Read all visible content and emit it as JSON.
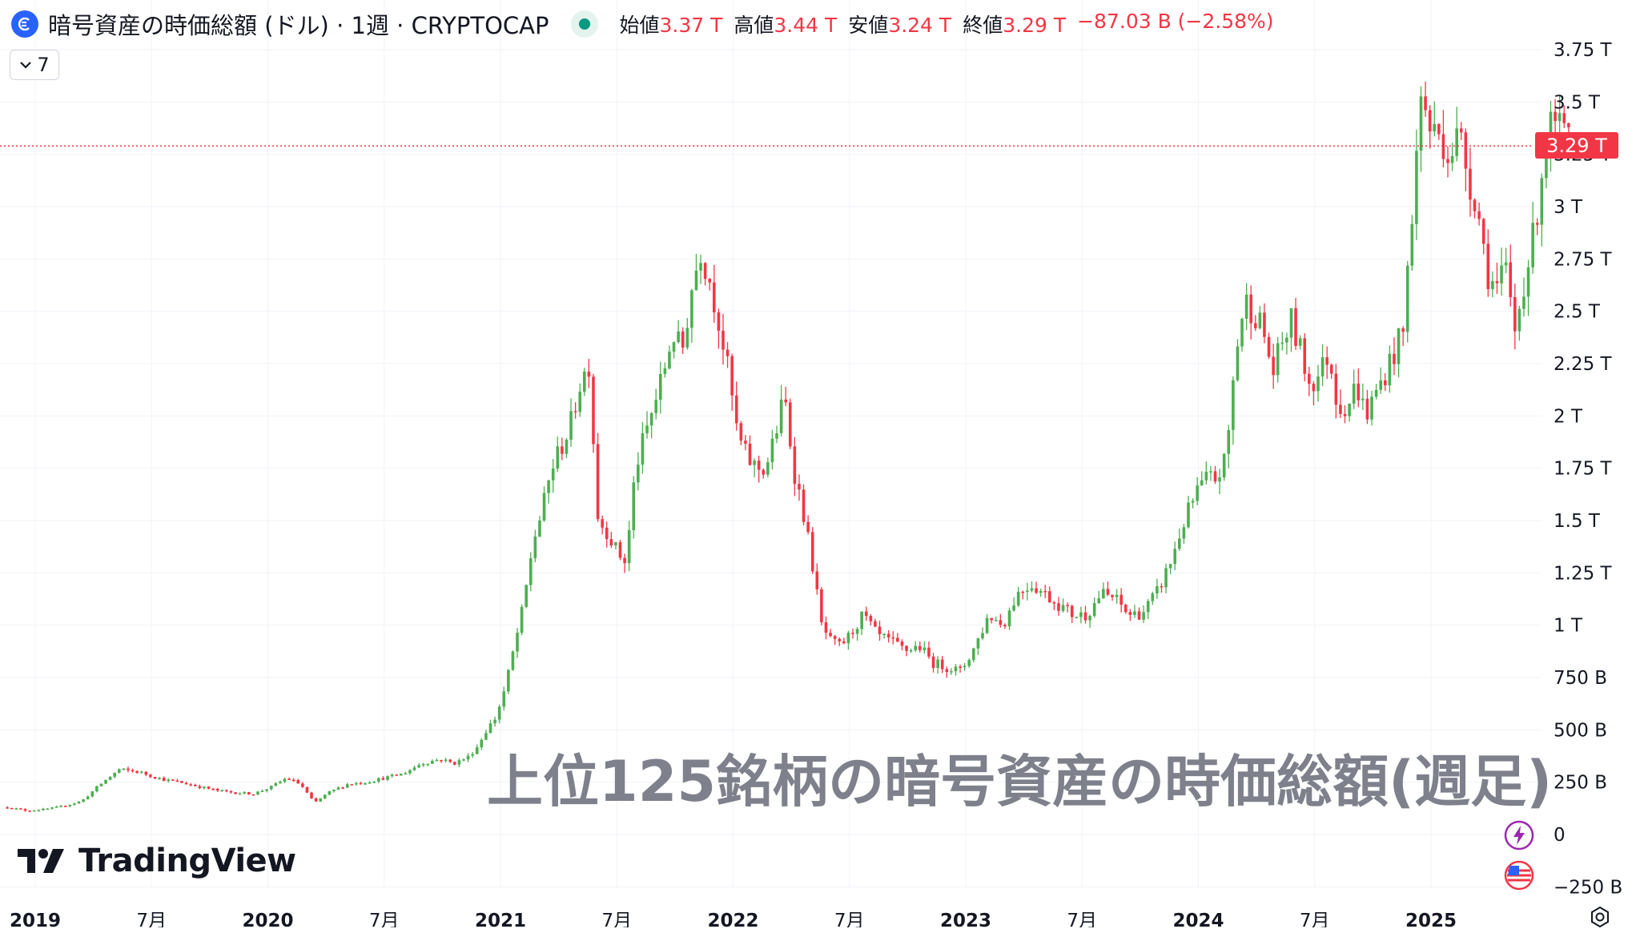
{
  "header": {
    "title": "暗号資産の時価総額 (ドル) · 1週 · CRYPTOCAP",
    "ohlc": [
      {
        "label": "始値",
        "value": "3.37 T"
      },
      {
        "label": "高値",
        "value": "3.44 T"
      },
      {
        "label": "安値",
        "value": "3.24 T"
      },
      {
        "label": "終値",
        "value": "3.29 T"
      }
    ],
    "change": "−87.03 B (−2.58%)",
    "collapse_label": "7"
  },
  "price_tag": "3.29 T",
  "logo_text": "TradingView",
  "watermark": "上位125銘柄の暗号資産の時価総額(週足)",
  "colors": {
    "up": "#4caf50",
    "down": "#f23645",
    "grid": "#f0f3fa",
    "axis_text": "#131722"
  },
  "chart_data": {
    "type": "candlestick",
    "title": "暗号資産の時価総額 (ドル) · 1週 · CRYPTOCAP",
    "y_axis": {
      "unit": "USD",
      "range": [
        -250000000000,
        3750000000000
      ],
      "ticks": [
        {
          "value": 3750000000000,
          "label": "3.75 T"
        },
        {
          "value": 3500000000000,
          "label": "3.5 T"
        },
        {
          "value": 3250000000000,
          "label": "3.25 T"
        },
        {
          "value": 3000000000000,
          "label": "3 T"
        },
        {
          "value": 2750000000000,
          "label": "2.75 T"
        },
        {
          "value": 2500000000000,
          "label": "2.5 T"
        },
        {
          "value": 2250000000000,
          "label": "2.25 T"
        },
        {
          "value": 2000000000000,
          "label": "2 T"
        },
        {
          "value": 1750000000000,
          "label": "1.75 T"
        },
        {
          "value": 1500000000000,
          "label": "1.5 T"
        },
        {
          "value": 1250000000000,
          "label": "1.25 T"
        },
        {
          "value": 1000000000000,
          "label": "1 T"
        },
        {
          "value": 750000000000,
          "label": "750 B"
        },
        {
          "value": 500000000000,
          "label": "500 B"
        },
        {
          "value": 250000000000,
          "label": "250 B"
        },
        {
          "value": 0,
          "label": "0"
        },
        {
          "value": -250000000000,
          "label": "−250 B"
        }
      ]
    },
    "x_axis": {
      "unit": "year",
      "ticks": [
        {
          "value": 2019.0,
          "label": "2019",
          "bold": true
        },
        {
          "value": 2019.5,
          "label": "7月",
          "bold": false
        },
        {
          "value": 2020.0,
          "label": "2020",
          "bold": true
        },
        {
          "value": 2020.5,
          "label": "7月",
          "bold": false
        },
        {
          "value": 2021.0,
          "label": "2021",
          "bold": true
        },
        {
          "value": 2021.5,
          "label": "7月",
          "bold": false
        },
        {
          "value": 2022.0,
          "label": "2022",
          "bold": true
        },
        {
          "value": 2022.5,
          "label": "7月",
          "bold": false
        },
        {
          "value": 2023.0,
          "label": "2023",
          "bold": true
        },
        {
          "value": 2023.5,
          "label": "7月",
          "bold": false
        },
        {
          "value": 2024.0,
          "label": "2024",
          "bold": true
        },
        {
          "value": 2024.5,
          "label": "7月",
          "bold": false
        },
        {
          "value": 2025.0,
          "label": "2025",
          "bold": true
        }
      ]
    },
    "last_price": 3290000000000,
    "series_close_billions": {
      "x": [
        2018.88,
        2018.96,
        2019.04,
        2019.12,
        2019.2,
        2019.28,
        2019.36,
        2019.44,
        2019.5,
        2019.56,
        2019.62,
        2019.7,
        2019.78,
        2019.86,
        2019.94,
        2020.02,
        2020.08,
        2020.14,
        2020.2,
        2020.26,
        2020.34,
        2020.42,
        2020.5,
        2020.58,
        2020.66,
        2020.74,
        2020.8,
        2020.86,
        2020.9,
        2020.94,
        2020.98,
        2021.02,
        2021.06,
        2021.1,
        2021.14,
        2021.18,
        2021.22,
        2021.26,
        2021.3,
        2021.34,
        2021.38,
        2021.42,
        2021.46,
        2021.5,
        2021.54,
        2021.58,
        2021.62,
        2021.66,
        2021.7,
        2021.74,
        2021.78,
        2021.82,
        2021.86,
        2021.9,
        2021.94,
        2021.98,
        2022.02,
        2022.06,
        2022.1,
        2022.14,
        2022.18,
        2022.22,
        2022.26,
        2022.3,
        2022.34,
        2022.38,
        2022.42,
        2022.46,
        2022.5,
        2022.56,
        2022.62,
        2022.68,
        2022.74,
        2022.8,
        2022.86,
        2022.92,
        2022.98,
        2023.04,
        2023.1,
        2023.16,
        2023.22,
        2023.28,
        2023.34,
        2023.4,
        2023.46,
        2023.52,
        2023.58,
        2023.64,
        2023.7,
        2023.76,
        2023.82,
        2023.88,
        2023.94,
        2024.0,
        2024.04,
        2024.08,
        2024.12,
        2024.16,
        2024.2,
        2024.24,
        2024.28,
        2024.32,
        2024.36,
        2024.4,
        2024.44,
        2024.48,
        2024.52,
        2024.56,
        2024.6,
        2024.64,
        2024.68,
        2024.72,
        2024.76,
        2024.8,
        2024.84,
        2024.88,
        2024.92,
        2024.96,
        2025.0,
        2025.04,
        2025.08,
        2025.12,
        2025.16,
        2025.2,
        2025.24,
        2025.28,
        2025.32,
        2025.36,
        2025.4,
        2025.44,
        2025.48,
        2025.52,
        2025.56,
        2025.6
      ],
      "close": [
        130,
        115,
        120,
        135,
        160,
        240,
        310,
        300,
        280,
        260,
        250,
        230,
        210,
        200,
        195,
        230,
        270,
        240,
        150,
        200,
        240,
        250,
        270,
        290,
        340,
        360,
        340,
        370,
        420,
        500,
        560,
        700,
        900,
        1100,
        1400,
        1550,
        1750,
        1850,
        1950,
        2150,
        2250,
        1500,
        1450,
        1350,
        1300,
        1750,
        1900,
        2050,
        2200,
        2400,
        2300,
        2600,
        2800,
        2650,
        2450,
        2200,
        1900,
        1800,
        1750,
        1750,
        1900,
        2100,
        1750,
        1550,
        1300,
        1000,
        920,
        900,
        950,
        1050,
        950,
        920,
        880,
        900,
        820,
        800,
        780,
        900,
        1050,
        1000,
        1150,
        1200,
        1150,
        1100,
        1050,
        1050,
        1150,
        1130,
        1050,
        1060,
        1150,
        1300,
        1500,
        1650,
        1700,
        1700,
        1800,
        2300,
        2550,
        2500,
        2400,
        2200,
        2350,
        2450,
        2300,
        2150,
        2200,
        2300,
        2050,
        2050,
        2150,
        2000,
        2100,
        2200,
        2300,
        2400,
        3000,
        3550,
        3350,
        3350,
        3250,
        3350,
        3150,
        3000,
        2700,
        2600,
        2700,
        2400,
        2650,
        2850,
        3200,
        3400,
        3350,
        3290
      ]
    }
  }
}
